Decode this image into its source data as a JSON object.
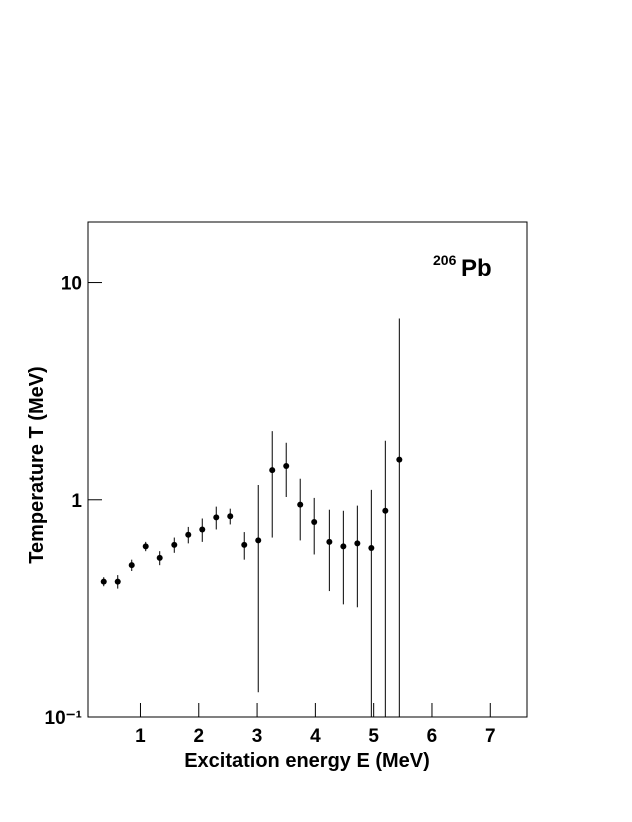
{
  "chart_data": {
    "type": "errorbar",
    "x_label": "Excitation energy E (MeV)",
    "y_label": "Temperature T (MeV)",
    "annotation": {
      "mass": "206",
      "element": "Pb"
    },
    "x": [
      0.37,
      0.61,
      0.85,
      1.09,
      1.33,
      1.58,
      1.82,
      2.06,
      2.3,
      2.54,
      2.78,
      3.02,
      3.26,
      3.5,
      3.74,
      3.98,
      4.24,
      4.48,
      4.72,
      4.96,
      5.2,
      5.44
    ],
    "values": [
      0.42,
      0.42,
      0.5,
      0.61,
      0.54,
      0.62,
      0.69,
      0.73,
      0.83,
      0.84,
      0.62,
      0.65,
      1.37,
      1.43,
      0.95,
      0.79,
      0.64,
      0.61,
      0.63,
      0.6,
      0.89,
      1.53
    ],
    "errors": [
      0.02,
      0.03,
      0.03,
      0.03,
      0.04,
      0.05,
      0.06,
      0.09,
      0.1,
      0.07,
      0.09,
      0.52,
      0.7,
      0.4,
      0.3,
      0.23,
      0.26,
      0.28,
      0.31,
      0.51,
      0.98,
      5.3
    ],
    "color": "#000000",
    "xlim": [
      0.1,
      7.63
    ],
    "xticks": [
      1,
      2,
      3,
      4,
      5,
      6,
      7
    ],
    "ylim": [
      0.1,
      19
    ],
    "log_y": true,
    "yticks": [
      {
        "value": 0.1,
        "label": "10⁻¹"
      },
      1,
      10
    ]
  }
}
